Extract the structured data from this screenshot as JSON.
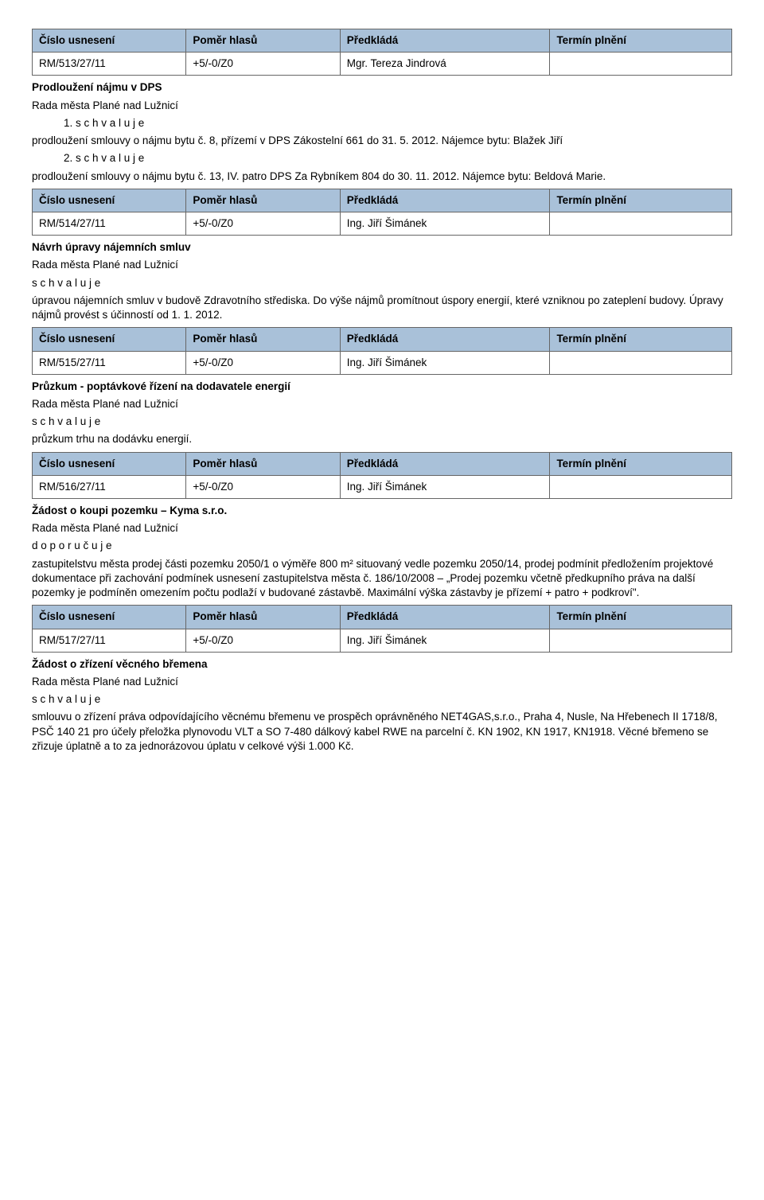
{
  "headers": {
    "col1": "Číslo usnesení",
    "col2": "Poměr hlasů",
    "col3": "Předkládá",
    "col4": "Termín plnění"
  },
  "common": {
    "rada": "Rada města Plané nad Lužnicí",
    "schvaluje": "s c h v a l u j e",
    "doporucuje": "d o p o r u č u j e"
  },
  "r513": {
    "num": "RM/513/27/11",
    "vote": "+5/-0/Z0",
    "pred": "Mgr. Tereza Jindrová",
    "title": "Prodloužení nájmu v DPS",
    "li1": "1. s c h v a l u j e",
    "body1": "prodloužení smlouvy o nájmu bytu č. 8, přízemí v DPS Zákostelní 661 do 31. 5. 2012. Nájemce bytu: Blažek Jiří",
    "li2": "2. s c h v a l u j e",
    "body2": "prodloužení smlouvy o nájmu bytu č. 13, IV. patro DPS Za Rybníkem 804 do 30. 11. 2012. Nájemce bytu: Beldová Marie."
  },
  "r514": {
    "num": "RM/514/27/11",
    "vote": "+5/-0/Z0",
    "pred": "Ing. Jiří Šimánek",
    "title": "Návrh úpravy nájemních smluv",
    "body": "úpravou nájemních smluv v budově Zdravotního střediska. Do výše nájmů promítnout úspory energií, které vzniknou po zateplení budovy. Úpravy nájmů provést s účinností od 1. 1. 2012."
  },
  "r515": {
    "num": "RM/515/27/11",
    "vote": "+5/-0/Z0",
    "pred": "Ing. Jiří Šimánek",
    "title": "Průzkum  - poptávkové řízení na dodavatele energií",
    "body": "průzkum trhu na dodávku energií."
  },
  "r516": {
    "num": "RM/516/27/11",
    "vote": "+5/-0/Z0",
    "pred": "Ing. Jiří Šimánek",
    "title": "Žádost o koupi pozemku – Kyma s.r.o.",
    "body": "zastupitelstvu města prodej části pozemku 2050/1 o výměře 800 m² situovaný vedle pozemku 2050/14, prodej podmínit předložením projektové dokumentace při zachování podmínek usnesení zastupitelstva města č. 186/10/2008 – „Prodej pozemku včetně předkupního práva na další pozemky je podmíněn omezením počtu podlaží v budované zástavbě. Maximální výška zástavby je přízemí + patro + podkroví\"."
  },
  "r517": {
    "num": "RM/517/27/11",
    "vote": "+5/-0/Z0",
    "pred": "Ing. Jiří Šimánek",
    "title": "Žádost o zřízení věcného břemena",
    "body": "smlouvu o zřízení práva odpovídajícího věcnému břemenu ve prospěch oprávněného NET4GAS,s.r.o., Praha 4, Nusle, Na Hřebenech II 1718/8, PSČ 140 21 pro účely přeložka plynovodu VLT a SO 7-480 dálkový kabel RWE na parcelní č. KN 1902, KN 1917, KN1918. Věcné břemeno se zřizuje úplatně a to za jednorázovou úplatu v celkové výši 1.000 Kč."
  }
}
